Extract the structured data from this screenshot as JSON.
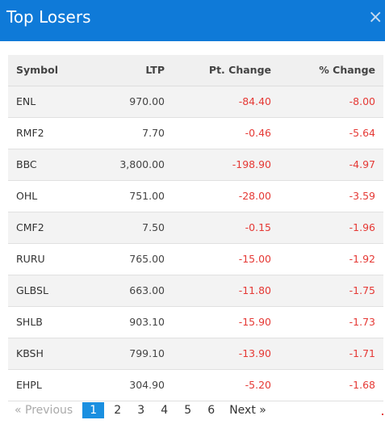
{
  "header": {
    "title": "Top Losers",
    "close_symbol": "×"
  },
  "table": {
    "columns": [
      "Symbol",
      "LTP",
      "Pt. Change",
      "% Change"
    ],
    "rows": [
      {
        "symbol": "ENL",
        "ltp": "970.00",
        "pt_change": "-84.40",
        "pct_change": "-8.00"
      },
      {
        "symbol": "RMF2",
        "ltp": "7.70",
        "pt_change": "-0.46",
        "pct_change": "-5.64"
      },
      {
        "symbol": "BBC",
        "ltp": "3,800.00",
        "pt_change": "-198.90",
        "pct_change": "-4.97"
      },
      {
        "symbol": "OHL",
        "ltp": "751.00",
        "pt_change": "-28.00",
        "pct_change": "-3.59"
      },
      {
        "symbol": "CMF2",
        "ltp": "7.50",
        "pt_change": "-0.15",
        "pct_change": "-1.96"
      },
      {
        "symbol": "RURU",
        "ltp": "765.00",
        "pt_change": "-15.00",
        "pct_change": "-1.92"
      },
      {
        "symbol": "GLBSL",
        "ltp": "663.00",
        "pt_change": "-11.80",
        "pct_change": "-1.75"
      },
      {
        "symbol": "SHLB",
        "ltp": "903.10",
        "pt_change": "-15.90",
        "pct_change": "-1.73"
      },
      {
        "symbol": "KBSH",
        "ltp": "799.10",
        "pt_change": "-13.90",
        "pct_change": "-1.71"
      },
      {
        "symbol": "EHPL",
        "ltp": "304.90",
        "pt_change": "-5.20",
        "pct_change": "-1.68"
      }
    ]
  },
  "pagination": {
    "prev_label": "« Previous",
    "pages": [
      "1",
      "2",
      "3",
      "4",
      "5",
      "6"
    ],
    "active_page": "1",
    "next_label": "Next »"
  },
  "colors": {
    "header_bg": "#0f7ad8",
    "negative": "#e53935",
    "active_page": "#1a8fe0"
  }
}
